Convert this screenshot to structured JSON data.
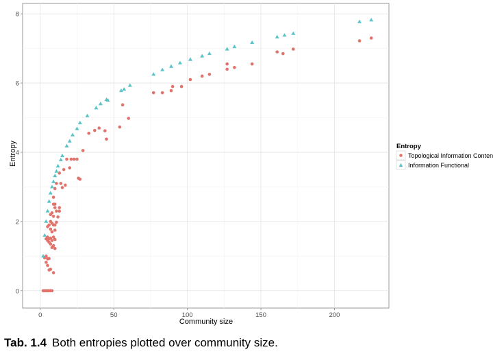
{
  "chart_data": {
    "type": "scatter",
    "xlabel": "Community size",
    "ylabel": "Entropy",
    "xlim": [
      -12,
      237
    ],
    "ylim": [
      -0.5,
      8.3
    ],
    "x_ticks": [
      0,
      50,
      100,
      150,
      200
    ],
    "y_ticks": [
      0,
      2,
      4,
      6,
      8
    ],
    "grid": true,
    "legend_title": "Entropy",
    "legend_position": "right",
    "series": [
      {
        "name": "Topological Information Content",
        "color": "#e0736b",
        "marker": "circle",
        "points": [
          [
            2,
            0
          ],
          [
            3,
            0
          ],
          [
            3,
            0
          ],
          [
            4,
            0
          ],
          [
            4,
            0
          ],
          [
            5,
            0
          ],
          [
            5,
            0
          ],
          [
            6,
            0
          ],
          [
            6,
            0
          ],
          [
            7,
            0
          ],
          [
            8,
            0
          ],
          [
            3,
            0.95
          ],
          [
            4,
            1.0
          ],
          [
            5,
            0.92
          ],
          [
            6,
            0.93
          ],
          [
            4,
            0.82
          ],
          [
            5,
            0.73
          ],
          [
            6,
            0.6
          ],
          [
            7,
            0.62
          ],
          [
            9,
            0.52
          ],
          [
            4,
            1.5
          ],
          [
            5,
            1.55
          ],
          [
            5,
            1.45
          ],
          [
            6,
            1.5
          ],
          [
            6,
            1.4
          ],
          [
            7,
            1.35
          ],
          [
            7,
            1.52
          ],
          [
            8,
            1.45
          ],
          [
            8,
            1.25
          ],
          [
            9,
            1.55
          ],
          [
            9,
            1.3
          ],
          [
            10,
            1.22
          ],
          [
            10,
            1.48
          ],
          [
            5,
            1.85
          ],
          [
            6,
            1.9
          ],
          [
            7,
            2.0
          ],
          [
            7,
            1.78
          ],
          [
            8,
            1.7
          ],
          [
            8,
            1.95
          ],
          [
            9,
            1.9
          ],
          [
            10,
            1.9
          ],
          [
            10,
            1.75
          ],
          [
            11,
            1.98
          ],
          [
            7,
            2.2
          ],
          [
            8,
            2.25
          ],
          [
            9,
            2.15
          ],
          [
            10,
            2.4
          ],
          [
            11,
            2.3
          ],
          [
            12,
            2.13
          ],
          [
            13,
            2.3
          ],
          [
            13,
            2.4
          ],
          [
            9,
            2.5
          ],
          [
            10,
            2.5
          ],
          [
            9,
            2.7
          ],
          [
            10,
            2.95
          ],
          [
            11,
            3.1
          ],
          [
            14,
            3.1
          ],
          [
            15,
            2.98
          ],
          [
            17,
            3.05
          ],
          [
            13,
            3.4
          ],
          [
            16,
            3.5
          ],
          [
            20,
            3.55
          ],
          [
            18,
            3.8
          ],
          [
            21,
            3.8
          ],
          [
            23,
            3.8
          ],
          [
            25,
            3.8
          ],
          [
            26,
            3.25
          ],
          [
            27,
            3.22
          ],
          [
            29,
            4.05
          ],
          [
            33,
            4.55
          ],
          [
            37,
            4.63
          ],
          [
            40,
            4.7
          ],
          [
            44,
            4.62
          ],
          [
            45,
            4.38
          ],
          [
            54,
            4.73
          ],
          [
            56,
            5.37
          ],
          [
            60,
            4.98
          ],
          [
            77,
            5.72
          ],
          [
            83,
            5.72
          ],
          [
            89,
            5.78
          ],
          [
            90,
            5.9
          ],
          [
            96,
            5.9
          ],
          [
            102,
            6.1
          ],
          [
            110,
            6.2
          ],
          [
            115,
            6.25
          ],
          [
            127,
            6.4
          ],
          [
            127,
            6.55
          ],
          [
            132,
            6.45
          ],
          [
            144,
            6.55
          ],
          [
            161,
            6.9
          ],
          [
            165,
            6.85
          ],
          [
            172,
            6.98
          ],
          [
            217,
            7.22
          ],
          [
            225,
            7.3
          ]
        ]
      },
      {
        "name": "Information Functional",
        "color": "#5bc4c8",
        "marker": "triangle",
        "points": [
          [
            2,
            1.0
          ],
          [
            3,
            1.6
          ],
          [
            4,
            2.0
          ],
          [
            5,
            2.3
          ],
          [
            6,
            2.58
          ],
          [
            7,
            2.82
          ],
          [
            8,
            3.0
          ],
          [
            9,
            3.15
          ],
          [
            10,
            3.32
          ],
          [
            11,
            3.45
          ],
          [
            12,
            3.6
          ],
          [
            14,
            3.78
          ],
          [
            15,
            3.9
          ],
          [
            18,
            4.18
          ],
          [
            20,
            4.32
          ],
          [
            22,
            4.5
          ],
          [
            25,
            4.68
          ],
          [
            27,
            4.85
          ],
          [
            32,
            5.05
          ],
          [
            38,
            5.28
          ],
          [
            41,
            5.4
          ],
          [
            45,
            5.52
          ],
          [
            46,
            5.5
          ],
          [
            55,
            5.78
          ],
          [
            57,
            5.82
          ],
          [
            61,
            5.93
          ],
          [
            77,
            6.25
          ],
          [
            83,
            6.38
          ],
          [
            89,
            6.48
          ],
          [
            95,
            6.58
          ],
          [
            102,
            6.68
          ],
          [
            110,
            6.78
          ],
          [
            115,
            6.85
          ],
          [
            127,
            6.98
          ],
          [
            132,
            7.05
          ],
          [
            144,
            7.17
          ],
          [
            161,
            7.33
          ],
          [
            166,
            7.38
          ],
          [
            172,
            7.43
          ],
          [
            217,
            7.77
          ],
          [
            225,
            7.82
          ]
        ]
      }
    ]
  },
  "caption": {
    "tab_label": "Tab. 1.4",
    "text": "Both entropies plotted over community size."
  }
}
